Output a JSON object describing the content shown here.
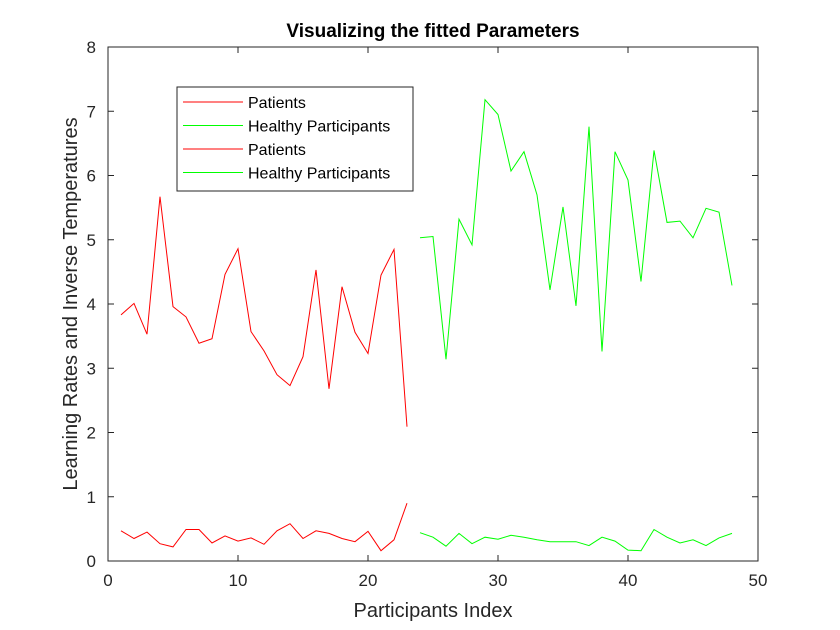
{
  "chart_data": {
    "type": "line",
    "title": "Visualizing the fitted Parameters",
    "xlabel": "Participants Index",
    "ylabel": "Learning Rates and Inverse Temperatures",
    "xlim": [
      0,
      50
    ],
    "ylim": [
      0,
      8
    ],
    "xticks": [
      0,
      10,
      20,
      30,
      40,
      50
    ],
    "yticks": [
      0,
      1,
      2,
      3,
      4,
      5,
      6,
      7,
      8
    ],
    "grid": false,
    "legend_position": "top-left",
    "series": [
      {
        "name": "Patients",
        "color": "#ff0000",
        "x": [
          1,
          2,
          3,
          4,
          5,
          6,
          7,
          8,
          9,
          10,
          11,
          12,
          13,
          14,
          15,
          16,
          17,
          18,
          19,
          20,
          21,
          22,
          23
        ],
        "values": [
          0.47,
          0.35,
          0.45,
          0.27,
          0.22,
          0.49,
          0.49,
          0.28,
          0.39,
          0.31,
          0.36,
          0.26,
          0.47,
          0.58,
          0.35,
          0.47,
          0.43,
          0.35,
          0.3,
          0.46,
          0.16,
          0.33,
          0.9
        ]
      },
      {
        "name": "Healthy Participants",
        "color": "#00ff00",
        "x": [
          24,
          25,
          26,
          27,
          28,
          29,
          30,
          31,
          32,
          33,
          34,
          35,
          36,
          37,
          38,
          39,
          40,
          41,
          42,
          43,
          44,
          45,
          46,
          47,
          48
        ],
        "values": [
          0.44,
          0.37,
          0.23,
          0.43,
          0.27,
          0.37,
          0.34,
          0.4,
          0.37,
          0.33,
          0.3,
          0.3,
          0.3,
          0.24,
          0.37,
          0.31,
          0.17,
          0.16,
          0.49,
          0.37,
          0.28,
          0.33,
          0.24,
          0.36,
          0.43
        ]
      },
      {
        "name": "Patients",
        "color": "#ff0000",
        "x": [
          1,
          2,
          3,
          4,
          5,
          6,
          7,
          8,
          9,
          10,
          11,
          12,
          13,
          14,
          15,
          16,
          17,
          18,
          19,
          20,
          21,
          22,
          23
        ],
        "values": [
          3.83,
          4.01,
          3.53,
          5.67,
          3.96,
          3.8,
          3.39,
          3.46,
          4.46,
          4.86,
          3.57,
          3.27,
          2.9,
          2.73,
          3.18,
          4.53,
          2.68,
          4.27,
          3.56,
          3.23,
          4.45,
          4.85,
          2.09
        ]
      },
      {
        "name": "Healthy Participants",
        "color": "#00ff00",
        "x": [
          24,
          25,
          26,
          27,
          28,
          29,
          30,
          31,
          32,
          33,
          34,
          35,
          36,
          37,
          38,
          39,
          40,
          41,
          42,
          43,
          44,
          45,
          46,
          47,
          48
        ],
        "values": [
          5.03,
          5.05,
          3.14,
          5.32,
          4.92,
          7.18,
          6.95,
          6.07,
          6.37,
          5.7,
          4.22,
          5.51,
          3.97,
          6.76,
          3.26,
          6.37,
          5.93,
          4.35,
          6.39,
          5.27,
          5.29,
          5.03,
          5.49,
          5.43,
          4.29
        ]
      }
    ]
  }
}
